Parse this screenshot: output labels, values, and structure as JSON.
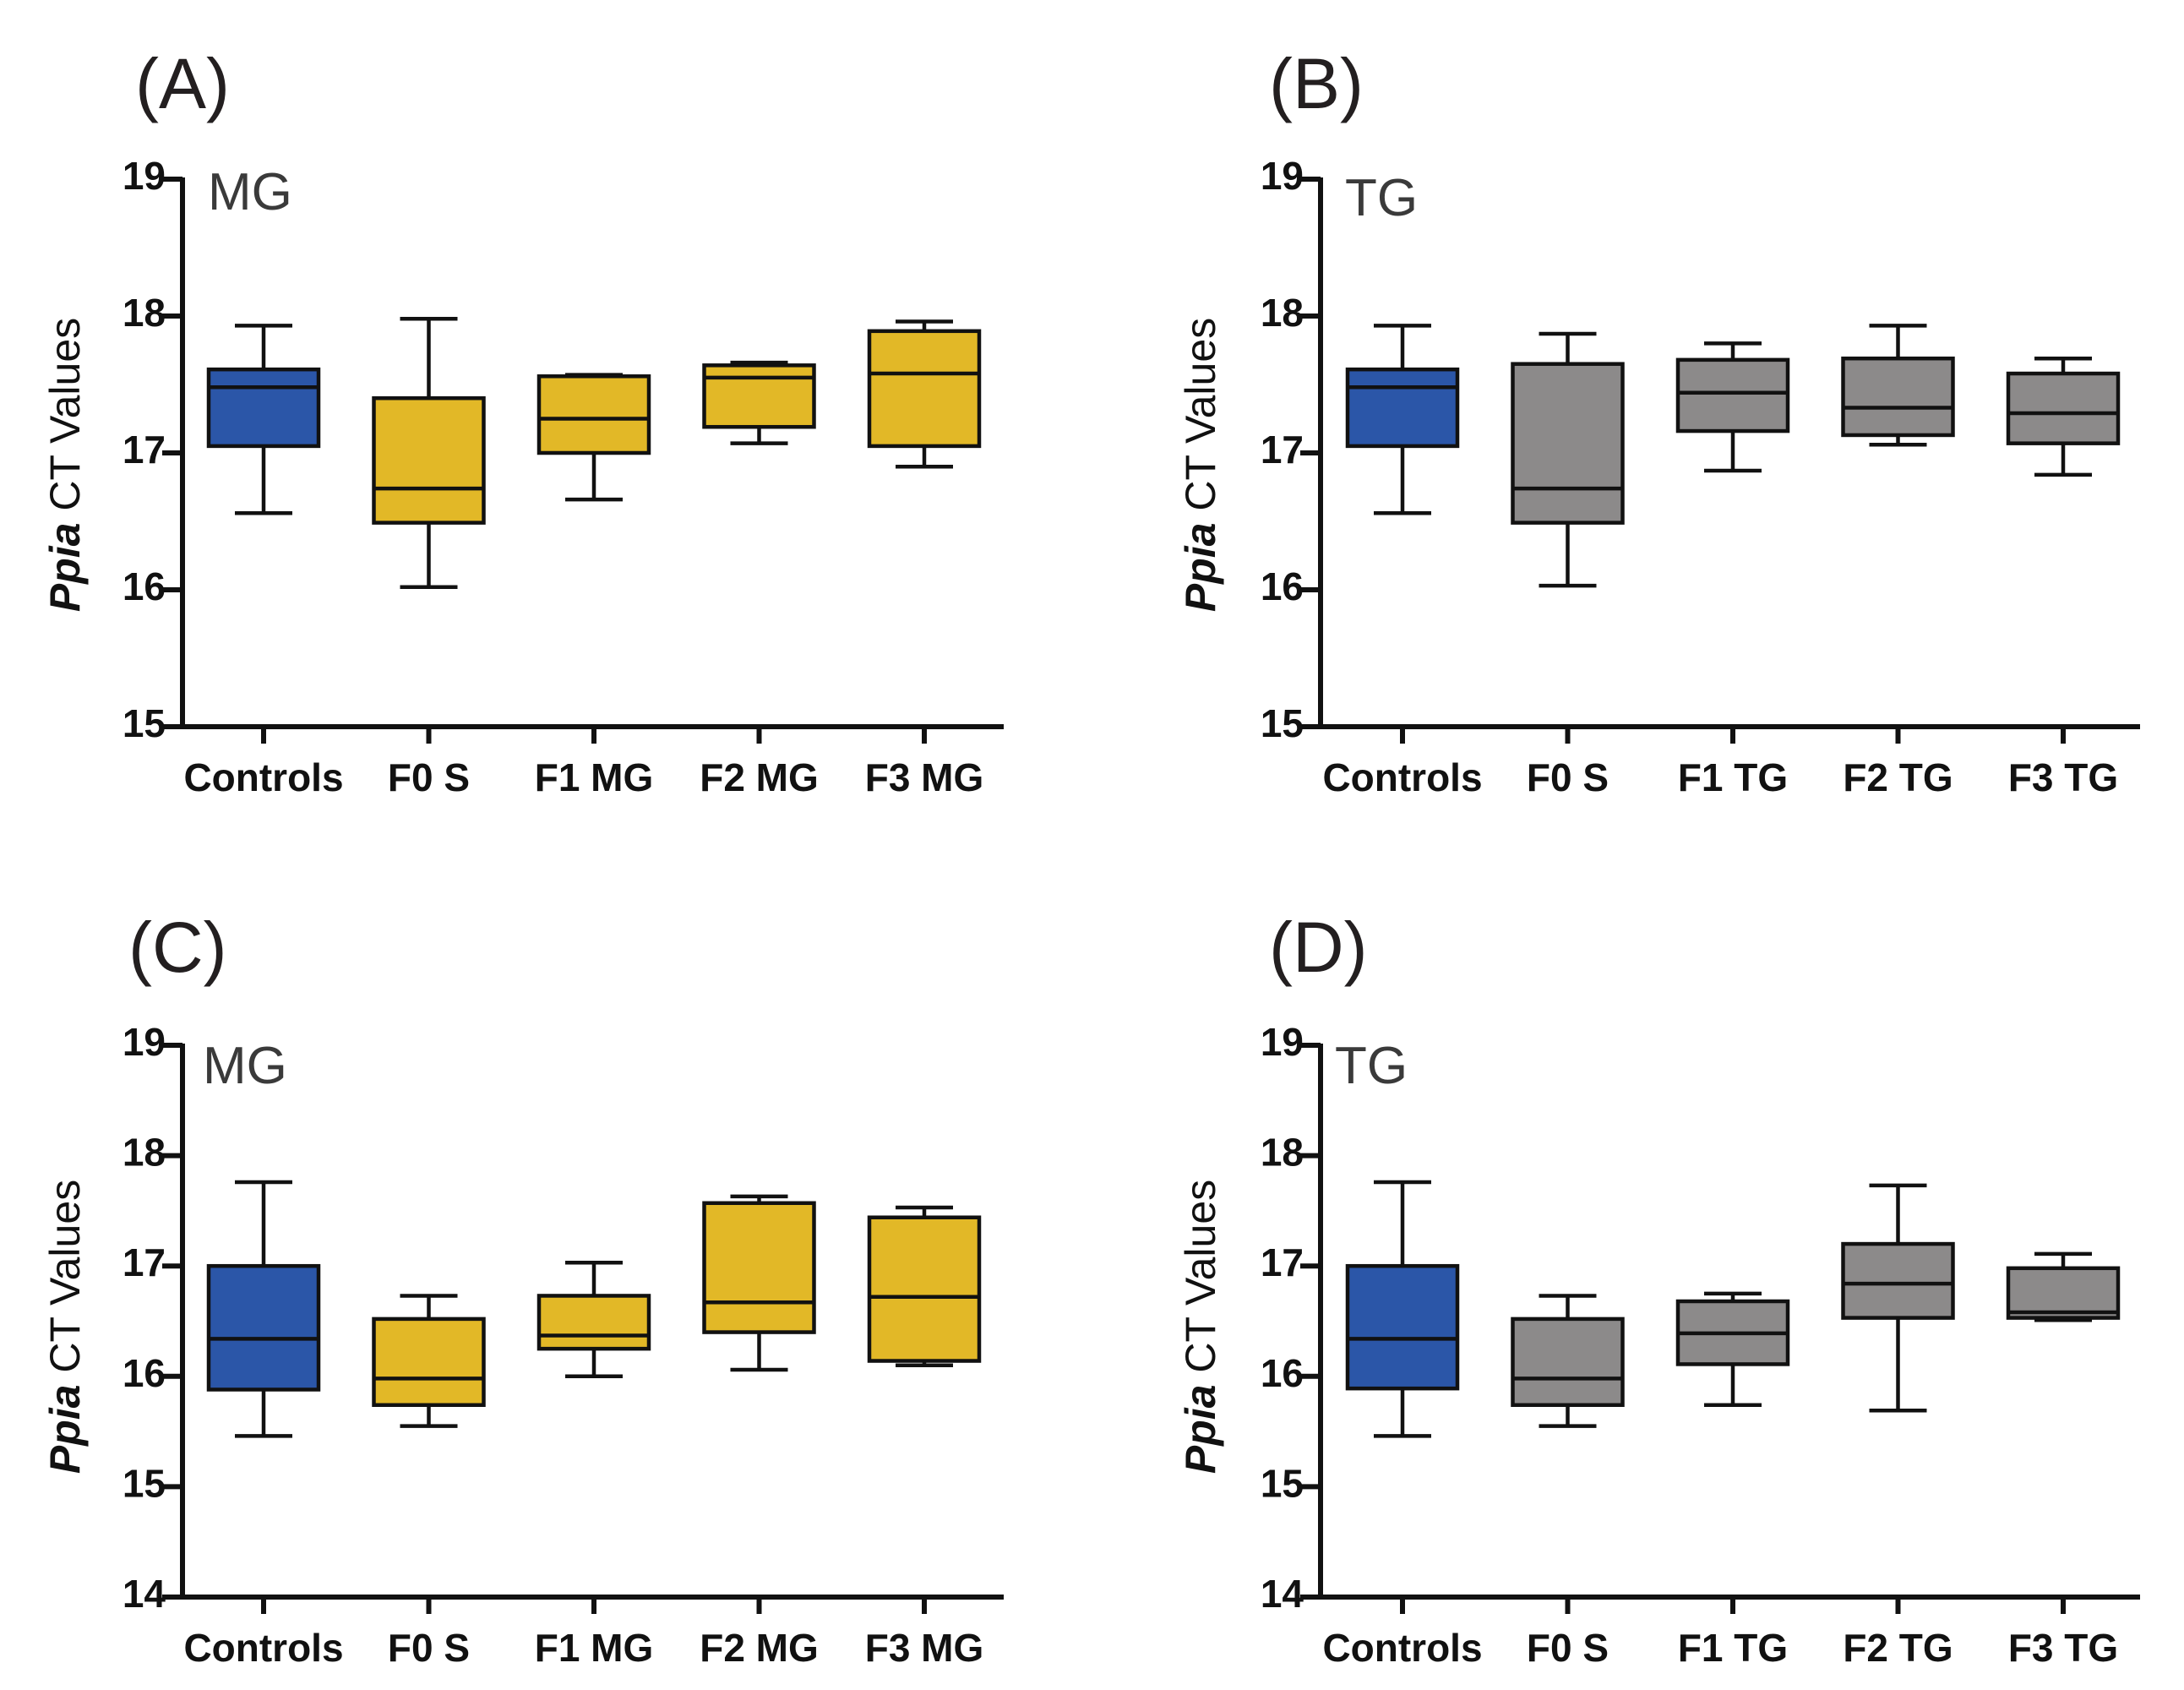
{
  "colors": {
    "control_blue": "#2b56a8",
    "mg_yellow": "#e2b827",
    "tg_gray": "#8c8a8a",
    "stroke": "#111111"
  },
  "chart_data": [
    {
      "type": "box",
      "panel": "(A)",
      "tissue": "MG",
      "ylabel_italic": "Ppia",
      "ylabel_rest": " CT Values",
      "ylim": [
        15,
        19
      ],
      "yticks": [
        15,
        16,
        17,
        18,
        19
      ],
      "categories": [
        "Controls",
        "F0 S",
        "F1 MG",
        "F2 MG",
        "F3 MG"
      ],
      "boxes": [
        {
          "color": "control_blue",
          "min": 16.56,
          "q1": 17.05,
          "median": 17.48,
          "q3": 17.61,
          "max": 17.93
        },
        {
          "color": "mg_yellow",
          "min": 16.02,
          "q1": 16.49,
          "median": 16.74,
          "q3": 17.4,
          "max": 17.98
        },
        {
          "color": "mg_yellow",
          "min": 16.66,
          "q1": 17.0,
          "median": 17.25,
          "q3": 17.56,
          "max": 17.57
        },
        {
          "color": "mg_yellow",
          "min": 17.07,
          "q1": 17.19,
          "median": 17.55,
          "q3": 17.64,
          "max": 17.66
        },
        {
          "color": "mg_yellow",
          "min": 16.9,
          "q1": 17.05,
          "median": 17.58,
          "q3": 17.89,
          "max": 17.96
        }
      ]
    },
    {
      "type": "box",
      "panel": "(B)",
      "tissue": "TG",
      "ylabel_italic": "Ppia",
      "ylabel_rest": " CT Values",
      "ylim": [
        15,
        19
      ],
      "yticks": [
        15,
        16,
        17,
        18,
        19
      ],
      "categories": [
        "Controls",
        "F0 S",
        "F1 TG",
        "F2 TG",
        "F3 TG"
      ],
      "boxes": [
        {
          "color": "control_blue",
          "min": 16.56,
          "q1": 17.05,
          "median": 17.48,
          "q3": 17.61,
          "max": 17.93
        },
        {
          "color": "tg_gray",
          "min": 16.03,
          "q1": 16.49,
          "median": 16.74,
          "q3": 17.65,
          "max": 17.87
        },
        {
          "color": "tg_gray",
          "min": 16.87,
          "q1": 17.16,
          "median": 17.44,
          "q3": 17.68,
          "max": 17.8
        },
        {
          "color": "tg_gray",
          "min": 17.06,
          "q1": 17.13,
          "median": 17.33,
          "q3": 17.69,
          "max": 17.93
        },
        {
          "color": "tg_gray",
          "min": 16.84,
          "q1": 17.07,
          "median": 17.29,
          "q3": 17.58,
          "max": 17.69
        }
      ]
    },
    {
      "type": "box",
      "panel": "(C)",
      "tissue": "MG",
      "ylabel_italic": "Ppia",
      "ylabel_rest": " CT Values",
      "ylim": [
        14,
        19
      ],
      "yticks": [
        14,
        15,
        16,
        17,
        18,
        19
      ],
      "categories": [
        "Controls",
        "F0 S",
        "F1 MG",
        "F2 MG",
        "F3 MG"
      ],
      "boxes": [
        {
          "color": "control_blue",
          "min": 15.46,
          "q1": 15.88,
          "median": 16.34,
          "q3": 17.0,
          "max": 17.76
        },
        {
          "color": "mg_yellow",
          "min": 15.55,
          "q1": 15.74,
          "median": 15.98,
          "q3": 16.52,
          "max": 16.73
        },
        {
          "color": "mg_yellow",
          "min": 16.0,
          "q1": 16.25,
          "median": 16.37,
          "q3": 16.73,
          "max": 17.03
        },
        {
          "color": "mg_yellow",
          "min": 16.06,
          "q1": 16.4,
          "median": 16.67,
          "q3": 17.57,
          "max": 17.63
        },
        {
          "color": "mg_yellow",
          "min": 16.1,
          "q1": 16.14,
          "median": 16.72,
          "q3": 17.44,
          "max": 17.53
        }
      ]
    },
    {
      "type": "box",
      "panel": "(D)",
      "tissue": "TG",
      "ylabel_italic": "Ppia",
      "ylabel_rest": " CT Values",
      "ylim": [
        14,
        19
      ],
      "yticks": [
        14,
        15,
        16,
        17,
        18,
        19
      ],
      "categories": [
        "Controls",
        "F0 S",
        "F1 TG",
        "F2 TG",
        "F3 TG"
      ],
      "boxes": [
        {
          "color": "control_blue",
          "min": 15.46,
          "q1": 15.89,
          "median": 16.34,
          "q3": 17.0,
          "max": 17.76
        },
        {
          "color": "tg_gray",
          "min": 15.55,
          "q1": 15.74,
          "median": 15.98,
          "q3": 16.52,
          "max": 16.73
        },
        {
          "color": "tg_gray",
          "min": 15.74,
          "q1": 16.11,
          "median": 16.39,
          "q3": 16.68,
          "max": 16.75
        },
        {
          "color": "tg_gray",
          "min": 15.69,
          "q1": 16.53,
          "median": 16.84,
          "q3": 17.2,
          "max": 17.73
        },
        {
          "color": "tg_gray",
          "min": 16.51,
          "q1": 16.53,
          "median": 16.58,
          "q3": 16.98,
          "max": 17.11
        }
      ]
    }
  ]
}
